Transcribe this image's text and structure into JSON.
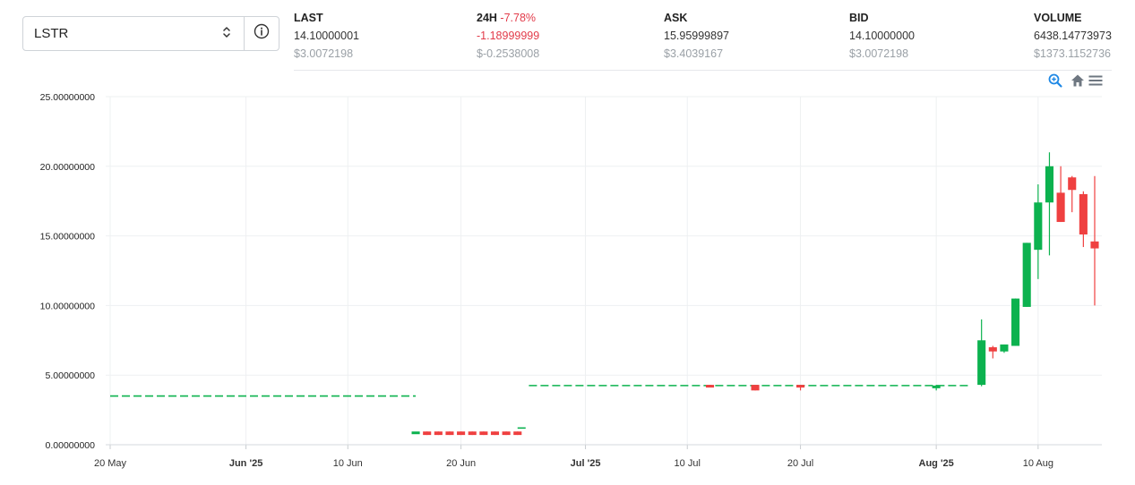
{
  "selector": {
    "value": "LSTR"
  },
  "stats": {
    "last": {
      "label": "LAST",
      "value": "14.10000001",
      "usd": "$3.0072198"
    },
    "change": {
      "label": "24H",
      "pct": "-7.78%",
      "value": "-1.18999999",
      "usd": "$-0.2538008"
    },
    "ask": {
      "label": "ASK",
      "value": "15.95999897",
      "usd": "$3.4039167"
    },
    "bid": {
      "label": "BID",
      "value": "14.10000000",
      "usd": "$3.0072198"
    },
    "volume": {
      "label": "VOLUME",
      "value": "6438.14773973",
      "usd": "$1373.1152736"
    }
  },
  "toolbar": {
    "icons": [
      "zoom-icon",
      "home-icon",
      "menu-icon"
    ]
  },
  "colors": {
    "up": "#0cb24f",
    "down": "#ef4040",
    "accent": "#1e88e5",
    "grid": "#eef0f2"
  },
  "chart_data": {
    "type": "candlestick",
    "ylim": [
      0,
      25
    ],
    "y_ticks": [
      "25.00000000",
      "20.00000000",
      "15.00000000",
      "10.00000000",
      "5.00000000",
      "0.00000000"
    ],
    "y_tick_values": [
      25,
      20,
      15,
      10,
      5,
      0
    ],
    "x_range": [
      "2025-05-20",
      "2025-08-15"
    ],
    "x_ticks": [
      {
        "label": "20 May",
        "date": "2025-05-20",
        "bold": false
      },
      {
        "label": "Jun '25",
        "date": "2025-06-01",
        "bold": true
      },
      {
        "label": "10 Jun",
        "date": "2025-06-10",
        "bold": false
      },
      {
        "label": "20 Jun",
        "date": "2025-06-20",
        "bold": false
      },
      {
        "label": "Jul '25",
        "date": "2025-07-01",
        "bold": true
      },
      {
        "label": "10 Jul",
        "date": "2025-07-10",
        "bold": false
      },
      {
        "label": "20 Jul",
        "date": "2025-07-20",
        "bold": false
      },
      {
        "label": "Aug '25",
        "date": "2025-08-01",
        "bold": true
      },
      {
        "label": "10 Aug",
        "date": "2025-08-10",
        "bold": false
      }
    ],
    "flat_segments": [
      {
        "from": "2025-05-20",
        "to": "2025-06-16",
        "value": 3.5,
        "color": "up"
      },
      {
        "from": "2025-06-25",
        "to": "2025-06-26",
        "value": 1.2,
        "color": "up"
      },
      {
        "from": "2025-06-26",
        "to": "2025-08-04",
        "value": 4.25,
        "color": "up"
      }
    ],
    "candles": [
      {
        "date": "2025-06-16",
        "open": 0.95,
        "high": 0.95,
        "low": 0.95,
        "close": 0.95
      },
      {
        "date": "2025-06-17",
        "open": 0.95,
        "high": 0.95,
        "low": 0.7,
        "close": 0.7
      },
      {
        "date": "2025-06-18",
        "open": 0.95,
        "high": 0.95,
        "low": 0.7,
        "close": 0.7
      },
      {
        "date": "2025-06-19",
        "open": 0.95,
        "high": 0.95,
        "low": 0.7,
        "close": 0.7
      },
      {
        "date": "2025-06-20",
        "open": 0.95,
        "high": 0.95,
        "low": 0.7,
        "close": 0.7
      },
      {
        "date": "2025-06-21",
        "open": 0.95,
        "high": 0.95,
        "low": 0.7,
        "close": 0.7
      },
      {
        "date": "2025-06-22",
        "open": 0.95,
        "high": 0.95,
        "low": 0.7,
        "close": 0.7
      },
      {
        "date": "2025-06-23",
        "open": 0.95,
        "high": 0.95,
        "low": 0.7,
        "close": 0.7
      },
      {
        "date": "2025-06-24",
        "open": 0.95,
        "high": 0.95,
        "low": 0.7,
        "close": 0.7
      },
      {
        "date": "2025-06-25",
        "open": 0.95,
        "high": 0.95,
        "low": 0.7,
        "close": 0.7
      },
      {
        "date": "2025-07-12",
        "open": 4.3,
        "high": 4.3,
        "low": 4.2,
        "close": 4.2
      },
      {
        "date": "2025-07-16",
        "open": 4.3,
        "high": 4.3,
        "low": 3.9,
        "close": 3.9
      },
      {
        "date": "2025-07-20",
        "open": 4.3,
        "high": 4.3,
        "low": 3.9,
        "close": 4.2
      },
      {
        "date": "2025-08-01",
        "open": 4.25,
        "high": 4.3,
        "low": 3.9,
        "close": 4.25
      },
      {
        "date": "2025-08-05",
        "open": 4.3,
        "high": 9.0,
        "low": 4.2,
        "close": 7.5
      },
      {
        "date": "2025-08-06",
        "open": 7.0,
        "high": 7.1,
        "low": 6.2,
        "close": 6.7
      },
      {
        "date": "2025-08-07",
        "open": 6.7,
        "high": 7.2,
        "low": 6.6,
        "close": 7.2
      },
      {
        "date": "2025-08-08",
        "open": 7.1,
        "high": 10.5,
        "low": 7.1,
        "close": 10.5
      },
      {
        "date": "2025-08-09",
        "open": 9.9,
        "high": 14.5,
        "low": 9.9,
        "close": 14.5
      },
      {
        "date": "2025-08-10",
        "open": 14.0,
        "high": 18.7,
        "low": 11.9,
        "close": 17.4
      },
      {
        "date": "2025-08-11",
        "open": 17.4,
        "high": 21.0,
        "low": 13.6,
        "close": 20.0
      },
      {
        "date": "2025-08-12",
        "open": 18.1,
        "high": 20.0,
        "low": 16.0,
        "close": 16.0
      },
      {
        "date": "2025-08-13",
        "open": 19.2,
        "high": 19.3,
        "low": 16.7,
        "close": 18.3
      },
      {
        "date": "2025-08-14",
        "open": 18.0,
        "high": 18.2,
        "low": 14.2,
        "close": 15.1
      },
      {
        "date": "2025-08-15",
        "open": 14.6,
        "high": 19.3,
        "low": 10.0,
        "close": 14.1
      }
    ]
  }
}
